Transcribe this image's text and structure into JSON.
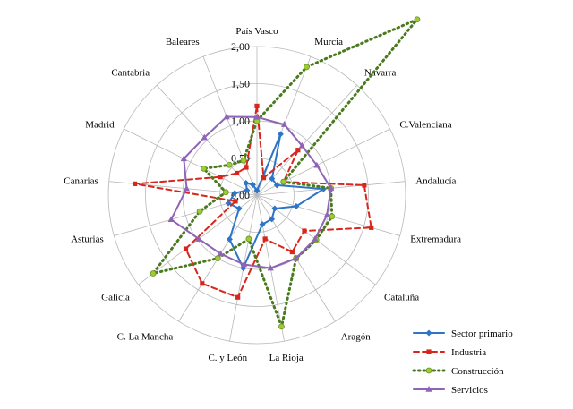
{
  "chart_data": {
    "type": "radar",
    "categories": [
      "País Vasco",
      "Murcia",
      "Navarra",
      "C.Valenciana",
      "Andalucía",
      "Extremadura",
      "Cataluña",
      "Aragón",
      "La Rioja",
      "C. y León",
      "C. La Mancha",
      "Galicia",
      "Asturias",
      "Canarias",
      "Madrid",
      "Cantabria",
      "Baleares"
    ],
    "rlim": [
      0,
      2.0
    ],
    "ticks": [
      "0,00",
      "0,50",
      "1,00",
      "1,50",
      "2,00"
    ],
    "tick_values": [
      0,
      0.5,
      1.0,
      1.5,
      2.0
    ],
    "grid": true,
    "legend_position": "bottom-right",
    "series": [
      {
        "name": "Sector primario",
        "color": "#2e75c6",
        "style": "solid",
        "marker": "diamond",
        "values": [
          0.06,
          0.88,
          0.3,
          0.3,
          0.9,
          0.55,
          0.3,
          0.38,
          0.4,
          1.0,
          0.7,
          0.3,
          0.4,
          0.3,
          0.15,
          0.22,
          0.15
        ]
      },
      {
        "name": "Industria",
        "color": "#d9261c",
        "style": "dashed",
        "marker": "square",
        "values": [
          1.2,
          0.25,
          0.82,
          0.4,
          1.45,
          1.6,
          0.8,
          0.9,
          0.6,
          1.4,
          1.4,
          1.2,
          0.3,
          1.65,
          0.55,
          0.4,
          0.4
        ]
      },
      {
        "name": "Construcción",
        "color": "#4a7a1e",
        "style": "dotted",
        "marker": "circle",
        "values": [
          1.0,
          1.85,
          3.2,
          0.4,
          1.0,
          1.05,
          1.0,
          1.0,
          1.8,
          0.6,
          1.0,
          1.75,
          0.8,
          0.42,
          0.8,
          0.55,
          0.5
        ]
      },
      {
        "name": "Servicios",
        "color": "#8f63b5",
        "style": "solid",
        "marker": "triangle",
        "values": [
          1.05,
          1.02,
          0.9,
          0.9,
          1.0,
          0.98,
          0.98,
          1.0,
          1.0,
          0.95,
          0.93,
          0.98,
          1.2,
          0.95,
          1.1,
          1.05,
          1.13
        ]
      }
    ]
  }
}
